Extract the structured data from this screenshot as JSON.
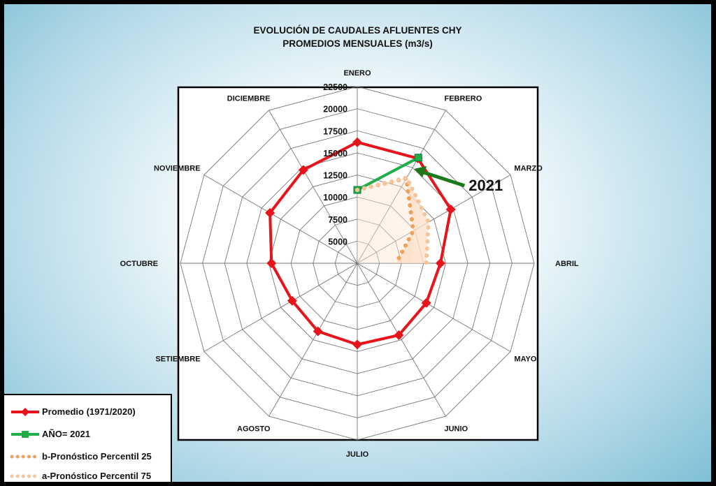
{
  "chart_data": {
    "type": "radar",
    "title": "EVOLUCIÓN DE CAUDALES AFLUENTES CHY",
    "subtitle": "PROMEDIOS MENSUALES (m3/s)",
    "categories": [
      "ENERO",
      "FEBRERO",
      "MARZO",
      "ABRIL",
      "MAYO",
      "JUNIO",
      "JULIO",
      "AGOSTO",
      "SETIEMBRE",
      "OCTUBRE",
      "NOVIEMBRE",
      "DICIEMBRE"
    ],
    "rlim": [
      2500,
      22500
    ],
    "ticks": [
      5000,
      7500,
      10000,
      12500,
      15000,
      17500,
      20000,
      22500
    ],
    "tick_labels": [
      "5000",
      "7500",
      "10000",
      "12500",
      "15000",
      "17500",
      "20000",
      "22500"
    ],
    "grid": true,
    "legend_position": "bottom-left",
    "series": [
      {
        "name": "Promedio (1971/2020)",
        "color": "#e8141c",
        "marker": "diamond",
        "values": [
          16200,
          16200,
          14700,
          11900,
          11500,
          11900,
          11700,
          11400,
          11000,
          12200,
          13900,
          14700
        ]
      },
      {
        "name": "AÑO= 2021",
        "color": "#1eae4a",
        "marker": "square",
        "values": [
          10800,
          16300,
          null,
          null,
          null,
          null,
          null,
          null,
          null,
          null,
          null,
          null
        ]
      },
      {
        "name": "b-Pronóstico Percentil 25",
        "color": "#f0a058",
        "marker": "dotted",
        "values": [
          10800,
          13600,
          9800,
          6900,
          null,
          null,
          null,
          null,
          null,
          null,
          null,
          null
        ]
      },
      {
        "name": "a-Pronóstico Percentil 75",
        "color": "#f6c49a",
        "marker": "dotted",
        "values": [
          10800,
          13700,
          11800,
          10300,
          null,
          null,
          null,
          null,
          null,
          null,
          null,
          null
        ]
      }
    ],
    "annotation": {
      "text": "2021",
      "color": "#1a7a1a"
    }
  }
}
